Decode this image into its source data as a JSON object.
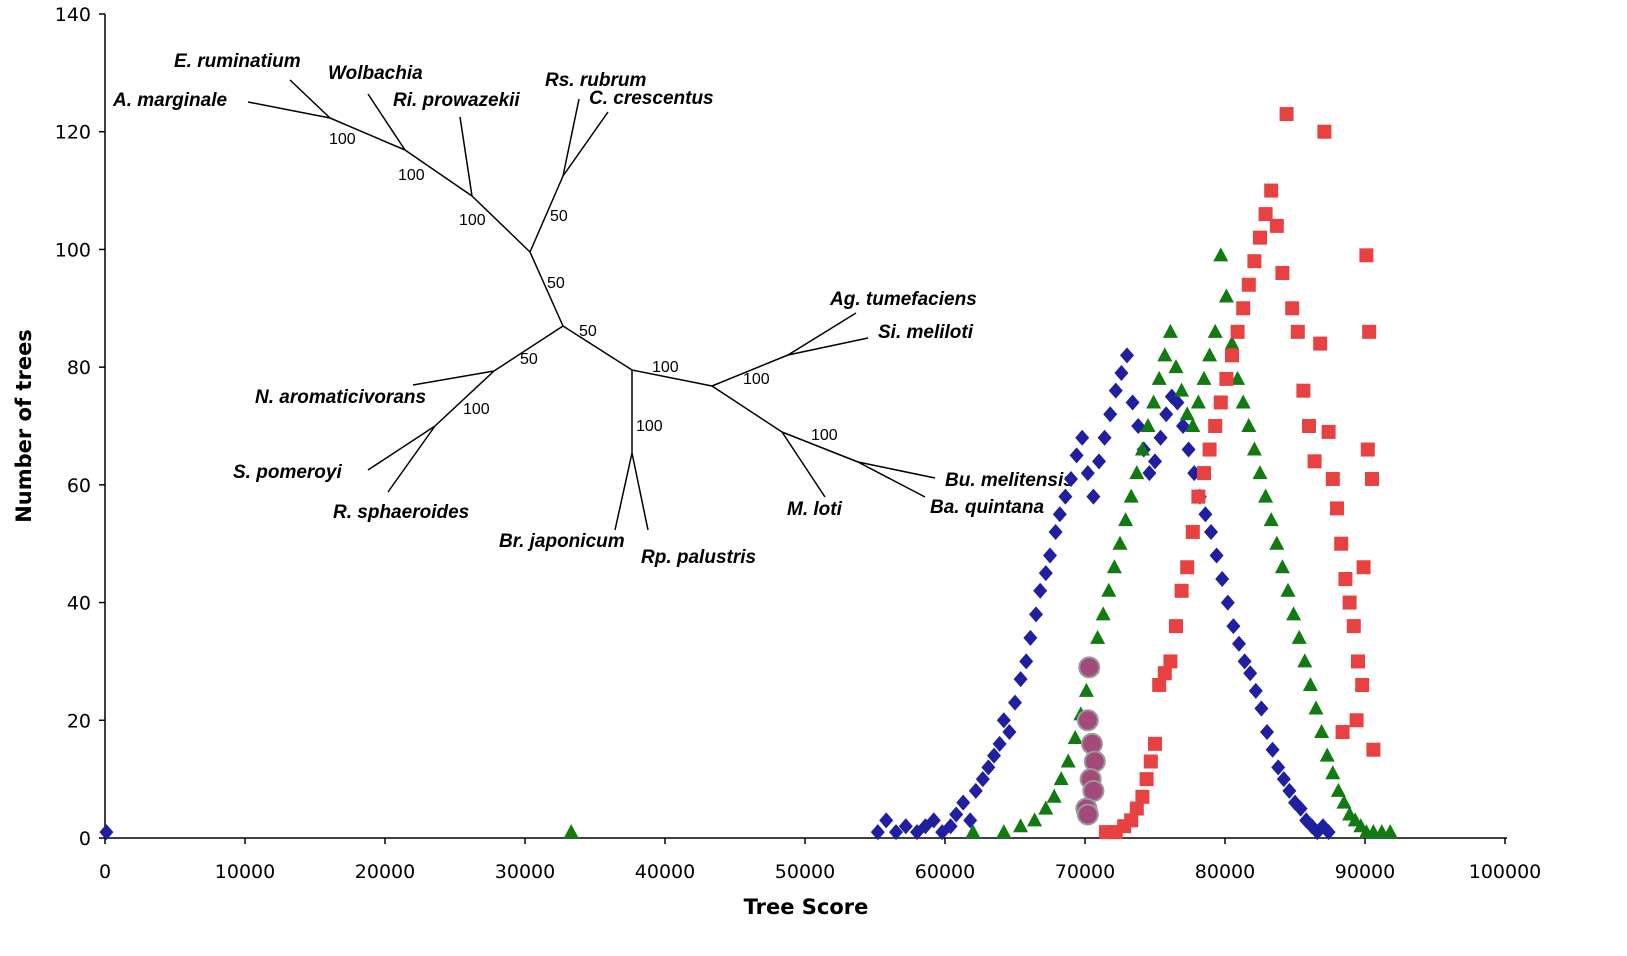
{
  "chart_data": {
    "type": "scatter",
    "title": "",
    "xlabel": "Tree Score",
    "ylabel": "Number of trees",
    "xlim": [
      0,
      100000
    ],
    "ylim": [
      0,
      140
    ],
    "x_ticks": [
      "0",
      "10000",
      "20000",
      "30000",
      "40000",
      "50000",
      "60000",
      "70000",
      "80000",
      "90000",
      "100000"
    ],
    "y_ticks": [
      "0",
      "20",
      "40",
      "60",
      "80",
      "100",
      "120",
      "140"
    ],
    "grid": false,
    "legend": "none",
    "series": [
      {
        "marker": "diamond",
        "color": "#1f1f9f",
        "points": [
          [
            100,
            1
          ],
          [
            55200,
            1
          ],
          [
            55800,
            3
          ],
          [
            56500,
            1
          ],
          [
            57200,
            2
          ],
          [
            58000,
            1
          ],
          [
            58600,
            2
          ],
          [
            59200,
            3
          ],
          [
            59800,
            1
          ],
          [
            60400,
            2
          ],
          [
            60800,
            4
          ],
          [
            61300,
            6
          ],
          [
            61800,
            3
          ],
          [
            62200,
            8
          ],
          [
            62700,
            10
          ],
          [
            63100,
            12
          ],
          [
            63500,
            14
          ],
          [
            63900,
            16
          ],
          [
            64200,
            20
          ],
          [
            64600,
            18
          ],
          [
            65000,
            23
          ],
          [
            65400,
            27
          ],
          [
            65800,
            30
          ],
          [
            66100,
            34
          ],
          [
            66500,
            38
          ],
          [
            66800,
            42
          ],
          [
            67200,
            45
          ],
          [
            67500,
            48
          ],
          [
            67900,
            52
          ],
          [
            68200,
            55
          ],
          [
            68600,
            58
          ],
          [
            69000,
            61
          ],
          [
            69400,
            65
          ],
          [
            69800,
            68
          ],
          [
            70200,
            62
          ],
          [
            70600,
            58
          ],
          [
            71000,
            64
          ],
          [
            71400,
            68
          ],
          [
            71800,
            72
          ],
          [
            72200,
            76
          ],
          [
            72600,
            79
          ],
          [
            73000,
            82
          ],
          [
            73400,
            74
          ],
          [
            73800,
            70
          ],
          [
            74200,
            66
          ],
          [
            74600,
            62
          ],
          [
            75000,
            64
          ],
          [
            75400,
            68
          ],
          [
            75800,
            72
          ],
          [
            76200,
            75
          ],
          [
            76600,
            74
          ],
          [
            77000,
            70
          ],
          [
            77400,
            66
          ],
          [
            77800,
            62
          ],
          [
            78200,
            58
          ],
          [
            78600,
            55
          ],
          [
            79000,
            52
          ],
          [
            79400,
            48
          ],
          [
            79800,
            44
          ],
          [
            80200,
            40
          ],
          [
            80600,
            36
          ],
          [
            81000,
            33
          ],
          [
            81400,
            30
          ],
          [
            81800,
            28
          ],
          [
            82200,
            25
          ],
          [
            82600,
            22
          ],
          [
            83000,
            18
          ],
          [
            83400,
            15
          ],
          [
            83800,
            12
          ],
          [
            84200,
            10
          ],
          [
            84600,
            8
          ],
          [
            85000,
            6
          ],
          [
            85400,
            5
          ],
          [
            85800,
            3
          ],
          [
            86200,
            2
          ],
          [
            86600,
            1
          ],
          [
            87000,
            2
          ],
          [
            87400,
            1
          ]
        ]
      },
      {
        "marker": "triangle",
        "color": "#117a11",
        "points": [
          [
            33300,
            1
          ],
          [
            62000,
            1
          ],
          [
            64200,
            1
          ],
          [
            65400,
            2
          ],
          [
            66400,
            3
          ],
          [
            67200,
            5
          ],
          [
            67800,
            7
          ],
          [
            68300,
            10
          ],
          [
            68800,
            13
          ],
          [
            69300,
            17
          ],
          [
            69700,
            21
          ],
          [
            70100,
            25
          ],
          [
            70500,
            29
          ],
          [
            70900,
            34
          ],
          [
            71300,
            38
          ],
          [
            71700,
            42
          ],
          [
            72100,
            46
          ],
          [
            72500,
            50
          ],
          [
            72900,
            54
          ],
          [
            73300,
            58
          ],
          [
            73700,
            62
          ],
          [
            74100,
            66
          ],
          [
            74500,
            70
          ],
          [
            74900,
            74
          ],
          [
            75300,
            78
          ],
          [
            75700,
            82
          ],
          [
            76100,
            86
          ],
          [
            76500,
            80
          ],
          [
            76900,
            76
          ],
          [
            77300,
            72
          ],
          [
            77700,
            70
          ],
          [
            78100,
            74
          ],
          [
            78500,
            78
          ],
          [
            78900,
            82
          ],
          [
            79300,
            86
          ],
          [
            79700,
            99
          ],
          [
            80100,
            92
          ],
          [
            80500,
            84
          ],
          [
            80900,
            78
          ],
          [
            81300,
            74
          ],
          [
            81700,
            70
          ],
          [
            82100,
            66
          ],
          [
            82500,
            62
          ],
          [
            82900,
            58
          ],
          [
            83300,
            54
          ],
          [
            83700,
            50
          ],
          [
            84100,
            46
          ],
          [
            84500,
            42
          ],
          [
            84900,
            38
          ],
          [
            85300,
            34
          ],
          [
            85700,
            30
          ],
          [
            86100,
            26
          ],
          [
            86500,
            22
          ],
          [
            86900,
            18
          ],
          [
            87300,
            14
          ],
          [
            87700,
            11
          ],
          [
            88100,
            8
          ],
          [
            88500,
            6
          ],
          [
            88900,
            4
          ],
          [
            89300,
            3
          ],
          [
            89700,
            2
          ],
          [
            90100,
            1
          ],
          [
            90600,
            1
          ],
          [
            91200,
            1
          ],
          [
            91800,
            1
          ]
        ]
      },
      {
        "marker": "square",
        "color": "#e84141",
        "points": [
          [
            71500,
            1
          ],
          [
            72200,
            1
          ],
          [
            72800,
            2
          ],
          [
            73300,
            3
          ],
          [
            73700,
            5
          ],
          [
            74100,
            7
          ],
          [
            74400,
            10
          ],
          [
            74700,
            13
          ],
          [
            75000,
            16
          ],
          [
            75300,
            26
          ],
          [
            75700,
            28
          ],
          [
            76100,
            30
          ],
          [
            76500,
            36
          ],
          [
            76900,
            42
          ],
          [
            77300,
            46
          ],
          [
            77700,
            52
          ],
          [
            78100,
            58
          ],
          [
            78500,
            62
          ],
          [
            78900,
            66
          ],
          [
            79300,
            70
          ],
          [
            79700,
            74
          ],
          [
            80100,
            78
          ],
          [
            80500,
            82
          ],
          [
            80900,
            86
          ],
          [
            81300,
            90
          ],
          [
            81700,
            94
          ],
          [
            82100,
            98
          ],
          [
            82500,
            102
          ],
          [
            82900,
            106
          ],
          [
            83300,
            110
          ],
          [
            83700,
            104
          ],
          [
            84100,
            96
          ],
          [
            84400,
            123
          ],
          [
            84800,
            90
          ],
          [
            85200,
            86
          ],
          [
            85600,
            76
          ],
          [
            86000,
            70
          ],
          [
            86400,
            64
          ],
          [
            86800,
            84
          ],
          [
            87100,
            120
          ],
          [
            87400,
            69
          ],
          [
            87700,
            61
          ],
          [
            88000,
            56
          ],
          [
            88300,
            50
          ],
          [
            88600,
            44
          ],
          [
            88900,
            40
          ],
          [
            89200,
            36
          ],
          [
            89500,
            30
          ],
          [
            89800,
            26
          ],
          [
            90100,
            99
          ],
          [
            90300,
            86
          ],
          [
            90200,
            66
          ],
          [
            90500,
            61
          ],
          [
            89900,
            46
          ],
          [
            90600,
            15
          ],
          [
            89400,
            20
          ],
          [
            88400,
            18
          ]
        ]
      },
      {
        "marker": "circle",
        "color": "#a34a7a",
        "points": [
          [
            70300,
            29
          ],
          [
            70200,
            20
          ],
          [
            70500,
            16
          ],
          [
            70700,
            13
          ],
          [
            70400,
            10
          ],
          [
            70600,
            8
          ],
          [
            70100,
            5
          ],
          [
            70200,
            4
          ]
        ]
      }
    ]
  },
  "tree": {
    "taxa": [
      "A. marginale",
      "E. ruminatium",
      "Wolbachia",
      "Ri. prowazekii",
      "Rs. rubrum",
      "C. crescentus",
      "Ag. tumefaciens",
      "Si. meliloti",
      "N. aromaticivorans",
      "S. pomeroyi",
      "R. sphaeroides",
      "Br. japonicum",
      "Rp. palustris",
      "M. loti",
      "Bu. melitensis",
      "Ba. quintana"
    ],
    "bootstrap": [
      "100",
      "100",
      "100",
      "50",
      "50",
      "50",
      "50",
      "100",
      "100",
      "100",
      "100",
      "100"
    ]
  }
}
